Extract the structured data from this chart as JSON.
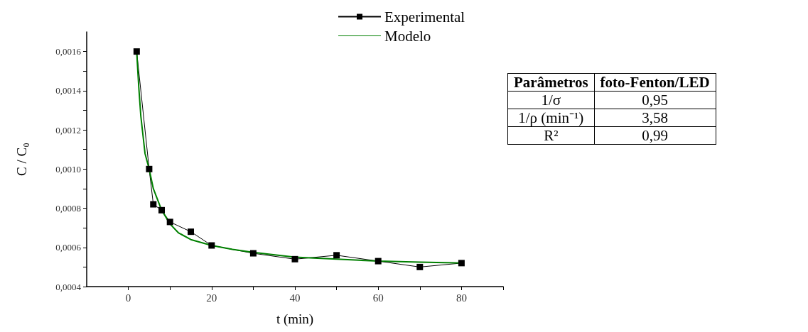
{
  "chart_data": [
    {
      "type": "line",
      "xlabel": "t (min)",
      "ylabel": "C / C₀",
      "xlim": [
        -10,
        90
      ],
      "ylim": [
        0.0004,
        0.0017
      ],
      "xticks": [
        0,
        {
          "value": 10,
          "label": null
        },
        20,
        {
          "value": 30,
          "label": null
        },
        40,
        {
          "value": 50,
          "label": null
        },
        60,
        {
          "value": 70,
          "label": null
        },
        80,
        {
          "value": 90,
          "label": null
        }
      ],
      "yticks": [
        {
          "value": 0.0004,
          "label": "0,0004"
        },
        {
          "value": 0.0005,
          "label": null
        },
        {
          "value": 0.0006,
          "label": "0,0006"
        },
        {
          "value": 0.0007,
          "label": null
        },
        {
          "value": 0.0008,
          "label": "0,0008"
        },
        {
          "value": 0.0009,
          "label": null
        },
        {
          "value": 0.001,
          "label": "0,0010"
        },
        {
          "value": 0.0011,
          "label": null
        },
        {
          "value": 0.0012,
          "label": "0,0012"
        },
        {
          "value": 0.0013,
          "label": null
        },
        {
          "value": 0.0014,
          "label": "0,0014"
        },
        {
          "value": 0.0015,
          "label": null
        },
        {
          "value": 0.0016,
          "label": "0,0016"
        }
      ],
      "grid": false,
      "legend": "top right",
      "series": [
        {
          "name": "Experimental",
          "color": "#000000",
          "marker": "square",
          "x": [
            2,
            5,
            6,
            8,
            10,
            15,
            20,
            30,
            40,
            50,
            60,
            70,
            80
          ],
          "values": [
            0.0016,
            0.001,
            0.00082,
            0.00079,
            0.00073,
            0.00068,
            0.00061,
            0.00057,
            0.00054,
            0.00056,
            0.00053,
            0.0005,
            0.00052
          ]
        },
        {
          "name": "Modelo",
          "color": "#008000",
          "marker": "none",
          "x": [
            2,
            2.5,
            3,
            4,
            5,
            6,
            8,
            10,
            12,
            15,
            20,
            25,
            30,
            40,
            50,
            60,
            70,
            80
          ],
          "values": [
            0.0016,
            0.00142,
            0.00127,
            0.00108,
            0.001,
            0.0009,
            0.00079,
            0.00072,
            0.000675,
            0.00064,
            0.00061,
            0.00059,
            0.000575,
            0.00055,
            0.00054,
            0.00053,
            0.000525,
            0.00052
          ]
        }
      ]
    },
    {
      "type": "other",
      "annotations": [
        "Parâmetros",
        "foto-Fenton/LED"
      ],
      "categories": [
        "1/σ",
        "1/ρ (min⁻¹)",
        "R²"
      ],
      "value_labels": [
        "0,95",
        "3,58",
        "0,99"
      ]
    }
  ]
}
